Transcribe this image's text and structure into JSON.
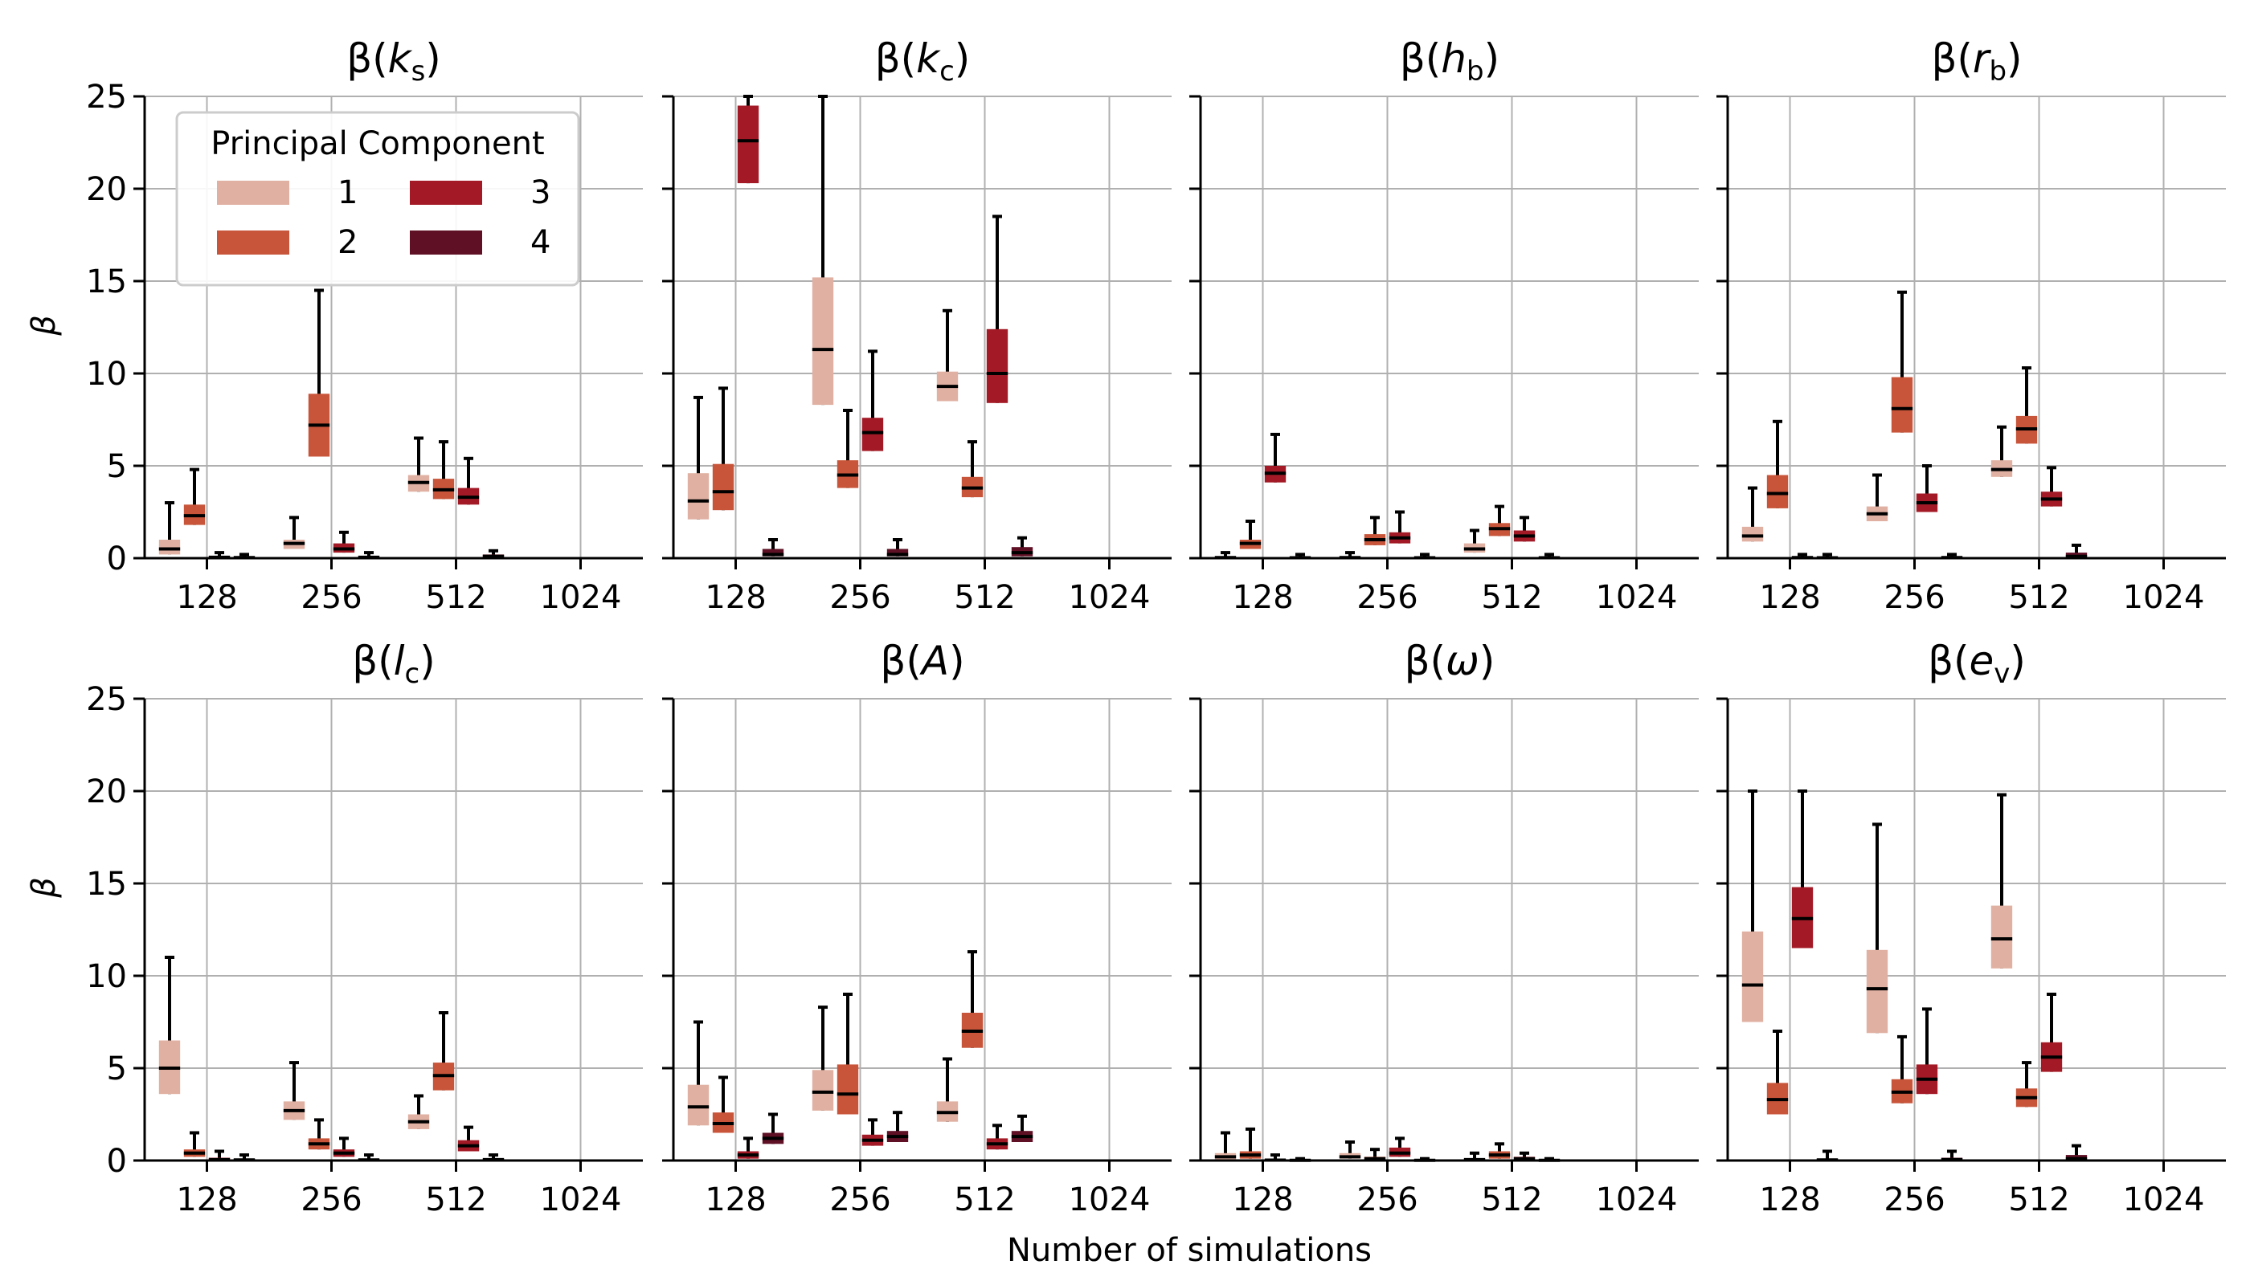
{
  "figure": {
    "xlabel": "Number of simulations",
    "ylabel": "β",
    "legend_title": "Principal Component"
  },
  "chart_data": {
    "type": "box",
    "categories": [
      "128",
      "256",
      "512",
      "1024"
    ],
    "ylim": [
      0,
      25
    ],
    "yticks": [
      0,
      5,
      10,
      15,
      20,
      25
    ],
    "grid": true,
    "legend": {
      "title": "Principal Component",
      "placement": "top-left of first panel",
      "entries": [
        "1",
        "2",
        "3",
        "4"
      ]
    },
    "series_colors": {
      "1": "#e0b0a2",
      "2": "#c8553a",
      "3": "#a31a26",
      "4": "#5f1025"
    },
    "panels": [
      {
        "title": "β(k_s)",
        "param": "k",
        "sub": "s",
        "boxes": [
          {
            "cat": "128",
            "pc": 1,
            "q1": 0.2,
            "median": 0.5,
            "q3": 1.0,
            "whisker_high": 3.0
          },
          {
            "cat": "128",
            "pc": 2,
            "q1": 1.8,
            "median": 2.3,
            "q3": 2.9,
            "whisker_high": 4.8
          },
          {
            "cat": "128",
            "pc": 3,
            "q1": 0.0,
            "median": 0.05,
            "q3": 0.1,
            "whisker_high": 0.3
          },
          {
            "cat": "128",
            "pc": 4,
            "q1": 0.0,
            "median": 0.03,
            "q3": 0.08,
            "whisker_high": 0.2
          },
          {
            "cat": "256",
            "pc": 1,
            "q1": 0.5,
            "median": 0.8,
            "q3": 1.0,
            "whisker_high": 2.2
          },
          {
            "cat": "256",
            "pc": 2,
            "q1": 5.5,
            "median": 7.2,
            "q3": 8.9,
            "whisker_high": 14.5
          },
          {
            "cat": "256",
            "pc": 3,
            "q1": 0.3,
            "median": 0.5,
            "q3": 0.8,
            "whisker_high": 1.4
          },
          {
            "cat": "256",
            "pc": 4,
            "q1": 0.0,
            "median": 0.05,
            "q3": 0.1,
            "whisker_high": 0.3
          },
          {
            "cat": "512",
            "pc": 1,
            "q1": 3.6,
            "median": 4.1,
            "q3": 4.5,
            "whisker_high": 6.5
          },
          {
            "cat": "512",
            "pc": 2,
            "q1": 3.2,
            "median": 3.7,
            "q3": 4.3,
            "whisker_high": 6.3
          },
          {
            "cat": "512",
            "pc": 3,
            "q1": 2.9,
            "median": 3.3,
            "q3": 3.8,
            "whisker_high": 5.4
          },
          {
            "cat": "512",
            "pc": 4,
            "q1": 0.05,
            "median": 0.1,
            "q3": 0.2,
            "whisker_high": 0.4
          }
        ]
      },
      {
        "title": "β(k_c)",
        "param": "k",
        "sub": "c",
        "boxes": [
          {
            "cat": "128",
            "pc": 1,
            "q1": 2.1,
            "median": 3.1,
            "q3": 4.6,
            "whisker_high": 8.7
          },
          {
            "cat": "128",
            "pc": 2,
            "q1": 2.6,
            "median": 3.6,
            "q3": 5.1,
            "whisker_high": 9.2
          },
          {
            "cat": "128",
            "pc": 3,
            "q1": 20.3,
            "median": 22.6,
            "q3": 24.5,
            "whisker_high": 25
          },
          {
            "cat": "128",
            "pc": 4,
            "q1": 0.1,
            "median": 0.2,
            "q3": 0.5,
            "whisker_high": 1.0
          },
          {
            "cat": "256",
            "pc": 1,
            "q1": 8.3,
            "median": 11.3,
            "q3": 15.2,
            "whisker_high": 25
          },
          {
            "cat": "256",
            "pc": 2,
            "q1": 3.8,
            "median": 4.5,
            "q3": 5.3,
            "whisker_high": 8.0
          },
          {
            "cat": "256",
            "pc": 3,
            "q1": 5.8,
            "median": 6.8,
            "q3": 7.6,
            "whisker_high": 11.2
          },
          {
            "cat": "256",
            "pc": 4,
            "q1": 0.1,
            "median": 0.2,
            "q3": 0.5,
            "whisker_high": 1.0
          },
          {
            "cat": "512",
            "pc": 1,
            "q1": 8.5,
            "median": 9.3,
            "q3": 10.1,
            "whisker_high": 13.4
          },
          {
            "cat": "512",
            "pc": 2,
            "q1": 3.3,
            "median": 3.8,
            "q3": 4.4,
            "whisker_high": 6.3
          },
          {
            "cat": "512",
            "pc": 3,
            "q1": 8.4,
            "median": 10.0,
            "q3": 12.4,
            "whisker_high": 18.5
          },
          {
            "cat": "512",
            "pc": 4,
            "q1": 0.1,
            "median": 0.3,
            "q3": 0.6,
            "whisker_high": 1.1
          }
        ]
      },
      {
        "title": "β(h_b)",
        "param": "h",
        "sub": "b",
        "boxes": [
          {
            "cat": "128",
            "pc": 1,
            "q1": 0.0,
            "median": 0.03,
            "q3": 0.1,
            "whisker_high": 0.3
          },
          {
            "cat": "128",
            "pc": 2,
            "q1": 0.5,
            "median": 0.8,
            "q3": 1.0,
            "whisker_high": 2.0
          },
          {
            "cat": "128",
            "pc": 3,
            "q1": 4.1,
            "median": 4.6,
            "q3": 5.0,
            "whisker_high": 6.7
          },
          {
            "cat": "128",
            "pc": 4,
            "q1": 0.0,
            "median": 0.02,
            "q3": 0.05,
            "whisker_high": 0.2
          },
          {
            "cat": "256",
            "pc": 1,
            "q1": 0.0,
            "median": 0.03,
            "q3": 0.1,
            "whisker_high": 0.3
          },
          {
            "cat": "256",
            "pc": 2,
            "q1": 0.7,
            "median": 1.0,
            "q3": 1.3,
            "whisker_high": 2.2
          },
          {
            "cat": "256",
            "pc": 3,
            "q1": 0.8,
            "median": 1.1,
            "q3": 1.4,
            "whisker_high": 2.5
          },
          {
            "cat": "256",
            "pc": 4,
            "q1": 0.0,
            "median": 0.02,
            "q3": 0.05,
            "whisker_high": 0.2
          },
          {
            "cat": "512",
            "pc": 1,
            "q1": 0.3,
            "median": 0.5,
            "q3": 0.8,
            "whisker_high": 1.5
          },
          {
            "cat": "512",
            "pc": 2,
            "q1": 1.2,
            "median": 1.6,
            "q3": 1.9,
            "whisker_high": 2.8
          },
          {
            "cat": "512",
            "pc": 3,
            "q1": 0.9,
            "median": 1.2,
            "q3": 1.5,
            "whisker_high": 2.2
          },
          {
            "cat": "512",
            "pc": 4,
            "q1": 0.0,
            "median": 0.02,
            "q3": 0.05,
            "whisker_high": 0.2
          }
        ]
      },
      {
        "title": "β(r_b)",
        "param": "r",
        "sub": "b",
        "boxes": [
          {
            "cat": "128",
            "pc": 1,
            "q1": 0.9,
            "median": 1.2,
            "q3": 1.7,
            "whisker_high": 3.8
          },
          {
            "cat": "128",
            "pc": 2,
            "q1": 2.7,
            "median": 3.5,
            "q3": 4.5,
            "whisker_high": 7.4
          },
          {
            "cat": "128",
            "pc": 3,
            "q1": 0.0,
            "median": 0.03,
            "q3": 0.08,
            "whisker_high": 0.2
          },
          {
            "cat": "128",
            "pc": 4,
            "q1": 0.0,
            "median": 0.02,
            "q3": 0.05,
            "whisker_high": 0.2
          },
          {
            "cat": "256",
            "pc": 1,
            "q1": 2.0,
            "median": 2.4,
            "q3": 2.8,
            "whisker_high": 4.5
          },
          {
            "cat": "256",
            "pc": 2,
            "q1": 6.8,
            "median": 8.1,
            "q3": 9.8,
            "whisker_high": 14.4
          },
          {
            "cat": "256",
            "pc": 3,
            "q1": 2.5,
            "median": 3.0,
            "q3": 3.5,
            "whisker_high": 5.0
          },
          {
            "cat": "256",
            "pc": 4,
            "q1": 0.0,
            "median": 0.03,
            "q3": 0.08,
            "whisker_high": 0.2
          },
          {
            "cat": "512",
            "pc": 1,
            "q1": 4.4,
            "median": 4.8,
            "q3": 5.3,
            "whisker_high": 7.1
          },
          {
            "cat": "512",
            "pc": 2,
            "q1": 6.2,
            "median": 7.0,
            "q3": 7.7,
            "whisker_high": 10.3
          },
          {
            "cat": "512",
            "pc": 3,
            "q1": 2.8,
            "median": 3.2,
            "q3": 3.6,
            "whisker_high": 4.9
          },
          {
            "cat": "512",
            "pc": 4,
            "q1": 0.0,
            "median": 0.1,
            "q3": 0.3,
            "whisker_high": 0.7
          }
        ]
      },
      {
        "title": "β(l_c)",
        "param": "l",
        "sub": "c",
        "boxes": [
          {
            "cat": "128",
            "pc": 1,
            "q1": 3.6,
            "median": 5.0,
            "q3": 6.5,
            "whisker_high": 11.0
          },
          {
            "cat": "128",
            "pc": 2,
            "q1": 0.2,
            "median": 0.4,
            "q3": 0.6,
            "whisker_high": 1.5
          },
          {
            "cat": "128",
            "pc": 3,
            "q1": 0.0,
            "median": 0.05,
            "q3": 0.15,
            "whisker_high": 0.5
          },
          {
            "cat": "128",
            "pc": 4,
            "q1": 0.0,
            "median": 0.03,
            "q3": 0.1,
            "whisker_high": 0.3
          },
          {
            "cat": "256",
            "pc": 1,
            "q1": 2.2,
            "median": 2.7,
            "q3": 3.2,
            "whisker_high": 5.3
          },
          {
            "cat": "256",
            "pc": 2,
            "q1": 0.6,
            "median": 0.9,
            "q3": 1.2,
            "whisker_high": 2.2
          },
          {
            "cat": "256",
            "pc": 3,
            "q1": 0.2,
            "median": 0.4,
            "q3": 0.6,
            "whisker_high": 1.2
          },
          {
            "cat": "256",
            "pc": 4,
            "q1": 0.0,
            "median": 0.03,
            "q3": 0.08,
            "whisker_high": 0.3
          },
          {
            "cat": "512",
            "pc": 1,
            "q1": 1.7,
            "median": 2.1,
            "q3": 2.5,
            "whisker_high": 3.5
          },
          {
            "cat": "512",
            "pc": 2,
            "q1": 3.8,
            "median": 4.6,
            "q3": 5.3,
            "whisker_high": 8.0
          },
          {
            "cat": "512",
            "pc": 3,
            "q1": 0.5,
            "median": 0.8,
            "q3": 1.1,
            "whisker_high": 1.8
          },
          {
            "cat": "512",
            "pc": 4,
            "q1": 0.0,
            "median": 0.05,
            "q3": 0.1,
            "whisker_high": 0.3
          }
        ]
      },
      {
        "title": "β(A)",
        "param": "A",
        "sub": "",
        "boxes": [
          {
            "cat": "128",
            "pc": 1,
            "q1": 1.9,
            "median": 2.9,
            "q3": 4.1,
            "whisker_high": 7.5
          },
          {
            "cat": "128",
            "pc": 2,
            "q1": 1.5,
            "median": 2.0,
            "q3": 2.6,
            "whisker_high": 4.5
          },
          {
            "cat": "128",
            "pc": 3,
            "q1": 0.1,
            "median": 0.3,
            "q3": 0.5,
            "whisker_high": 1.2
          },
          {
            "cat": "128",
            "pc": 4,
            "q1": 0.9,
            "median": 1.2,
            "q3": 1.5,
            "whisker_high": 2.5
          },
          {
            "cat": "256",
            "pc": 1,
            "q1": 2.7,
            "median": 3.7,
            "q3": 4.9,
            "whisker_high": 8.3
          },
          {
            "cat": "256",
            "pc": 2,
            "q1": 2.5,
            "median": 3.6,
            "q3": 5.2,
            "whisker_high": 9.0
          },
          {
            "cat": "256",
            "pc": 3,
            "q1": 0.8,
            "median": 1.1,
            "q3": 1.4,
            "whisker_high": 2.2
          },
          {
            "cat": "256",
            "pc": 4,
            "q1": 1.0,
            "median": 1.3,
            "q3": 1.6,
            "whisker_high": 2.6
          },
          {
            "cat": "512",
            "pc": 1,
            "q1": 2.1,
            "median": 2.6,
            "q3": 3.2,
            "whisker_high": 5.5
          },
          {
            "cat": "512",
            "pc": 2,
            "q1": 6.1,
            "median": 7.0,
            "q3": 8.0,
            "whisker_high": 11.3
          },
          {
            "cat": "512",
            "pc": 3,
            "q1": 0.6,
            "median": 0.9,
            "q3": 1.2,
            "whisker_high": 1.9
          },
          {
            "cat": "512",
            "pc": 4,
            "q1": 1.0,
            "median": 1.3,
            "q3": 1.6,
            "whisker_high": 2.4
          }
        ]
      },
      {
        "title": "β(ω)",
        "param": "ω",
        "sub": "",
        "boxes": [
          {
            "cat": "128",
            "pc": 1,
            "q1": 0.0,
            "median": 0.2,
            "q3": 0.4,
            "whisker_high": 1.5
          },
          {
            "cat": "128",
            "pc": 2,
            "q1": 0.1,
            "median": 0.3,
            "q3": 0.5,
            "whisker_high": 1.7
          },
          {
            "cat": "128",
            "pc": 3,
            "q1": 0.0,
            "median": 0.02,
            "q3": 0.05,
            "whisker_high": 0.3
          },
          {
            "cat": "128",
            "pc": 4,
            "q1": 0.0,
            "median": 0.01,
            "q3": 0.03,
            "whisker_high": 0.1
          },
          {
            "cat": "256",
            "pc": 1,
            "q1": 0.1,
            "median": 0.2,
            "q3": 0.4,
            "whisker_high": 1.0
          },
          {
            "cat": "256",
            "pc": 2,
            "q1": 0.0,
            "median": 0.1,
            "q3": 0.2,
            "whisker_high": 0.6
          },
          {
            "cat": "256",
            "pc": 3,
            "q1": 0.2,
            "median": 0.4,
            "q3": 0.7,
            "whisker_high": 1.2
          },
          {
            "cat": "256",
            "pc": 4,
            "q1": 0.0,
            "median": 0.01,
            "q3": 0.03,
            "whisker_high": 0.1
          },
          {
            "cat": "512",
            "pc": 1,
            "q1": 0.0,
            "median": 0.05,
            "q3": 0.1,
            "whisker_high": 0.4
          },
          {
            "cat": "512",
            "pc": 2,
            "q1": 0.1,
            "median": 0.3,
            "q3": 0.5,
            "whisker_high": 0.9
          },
          {
            "cat": "512",
            "pc": 3,
            "q1": 0.0,
            "median": 0.1,
            "q3": 0.2,
            "whisker_high": 0.4
          },
          {
            "cat": "512",
            "pc": 4,
            "q1": 0.0,
            "median": 0.01,
            "q3": 0.03,
            "whisker_high": 0.1
          }
        ]
      },
      {
        "title": "β(e_v)",
        "param": "e",
        "sub": "v",
        "boxes": [
          {
            "cat": "128",
            "pc": 1,
            "q1": 7.5,
            "median": 9.5,
            "q3": 12.4,
            "whisker_high": 20.0
          },
          {
            "cat": "128",
            "pc": 2,
            "q1": 2.5,
            "median": 3.3,
            "q3": 4.2,
            "whisker_high": 7.0
          },
          {
            "cat": "128",
            "pc": 3,
            "q1": 11.5,
            "median": 13.1,
            "q3": 14.8,
            "whisker_high": 20.0
          },
          {
            "cat": "128",
            "pc": 4,
            "q1": 0.0,
            "median": 0.03,
            "q3": 0.1,
            "whisker_high": 0.5
          },
          {
            "cat": "256",
            "pc": 1,
            "q1": 6.9,
            "median": 9.3,
            "q3": 11.4,
            "whisker_high": 18.2
          },
          {
            "cat": "256",
            "pc": 2,
            "q1": 3.1,
            "median": 3.7,
            "q3": 4.4,
            "whisker_high": 6.7
          },
          {
            "cat": "256",
            "pc": 3,
            "q1": 3.6,
            "median": 4.4,
            "q3": 5.2,
            "whisker_high": 8.2
          },
          {
            "cat": "256",
            "pc": 4,
            "q1": 0.0,
            "median": 0.05,
            "q3": 0.15,
            "whisker_high": 0.5
          },
          {
            "cat": "512",
            "pc": 1,
            "q1": 10.4,
            "median": 12.0,
            "q3": 13.8,
            "whisker_high": 19.8
          },
          {
            "cat": "512",
            "pc": 2,
            "q1": 2.9,
            "median": 3.4,
            "q3": 3.9,
            "whisker_high": 5.3
          },
          {
            "cat": "512",
            "pc": 3,
            "q1": 4.8,
            "median": 5.6,
            "q3": 6.4,
            "whisker_high": 9.0
          },
          {
            "cat": "512",
            "pc": 4,
            "q1": 0.0,
            "median": 0.1,
            "q3": 0.3,
            "whisker_high": 0.8
          }
        ]
      }
    ]
  }
}
